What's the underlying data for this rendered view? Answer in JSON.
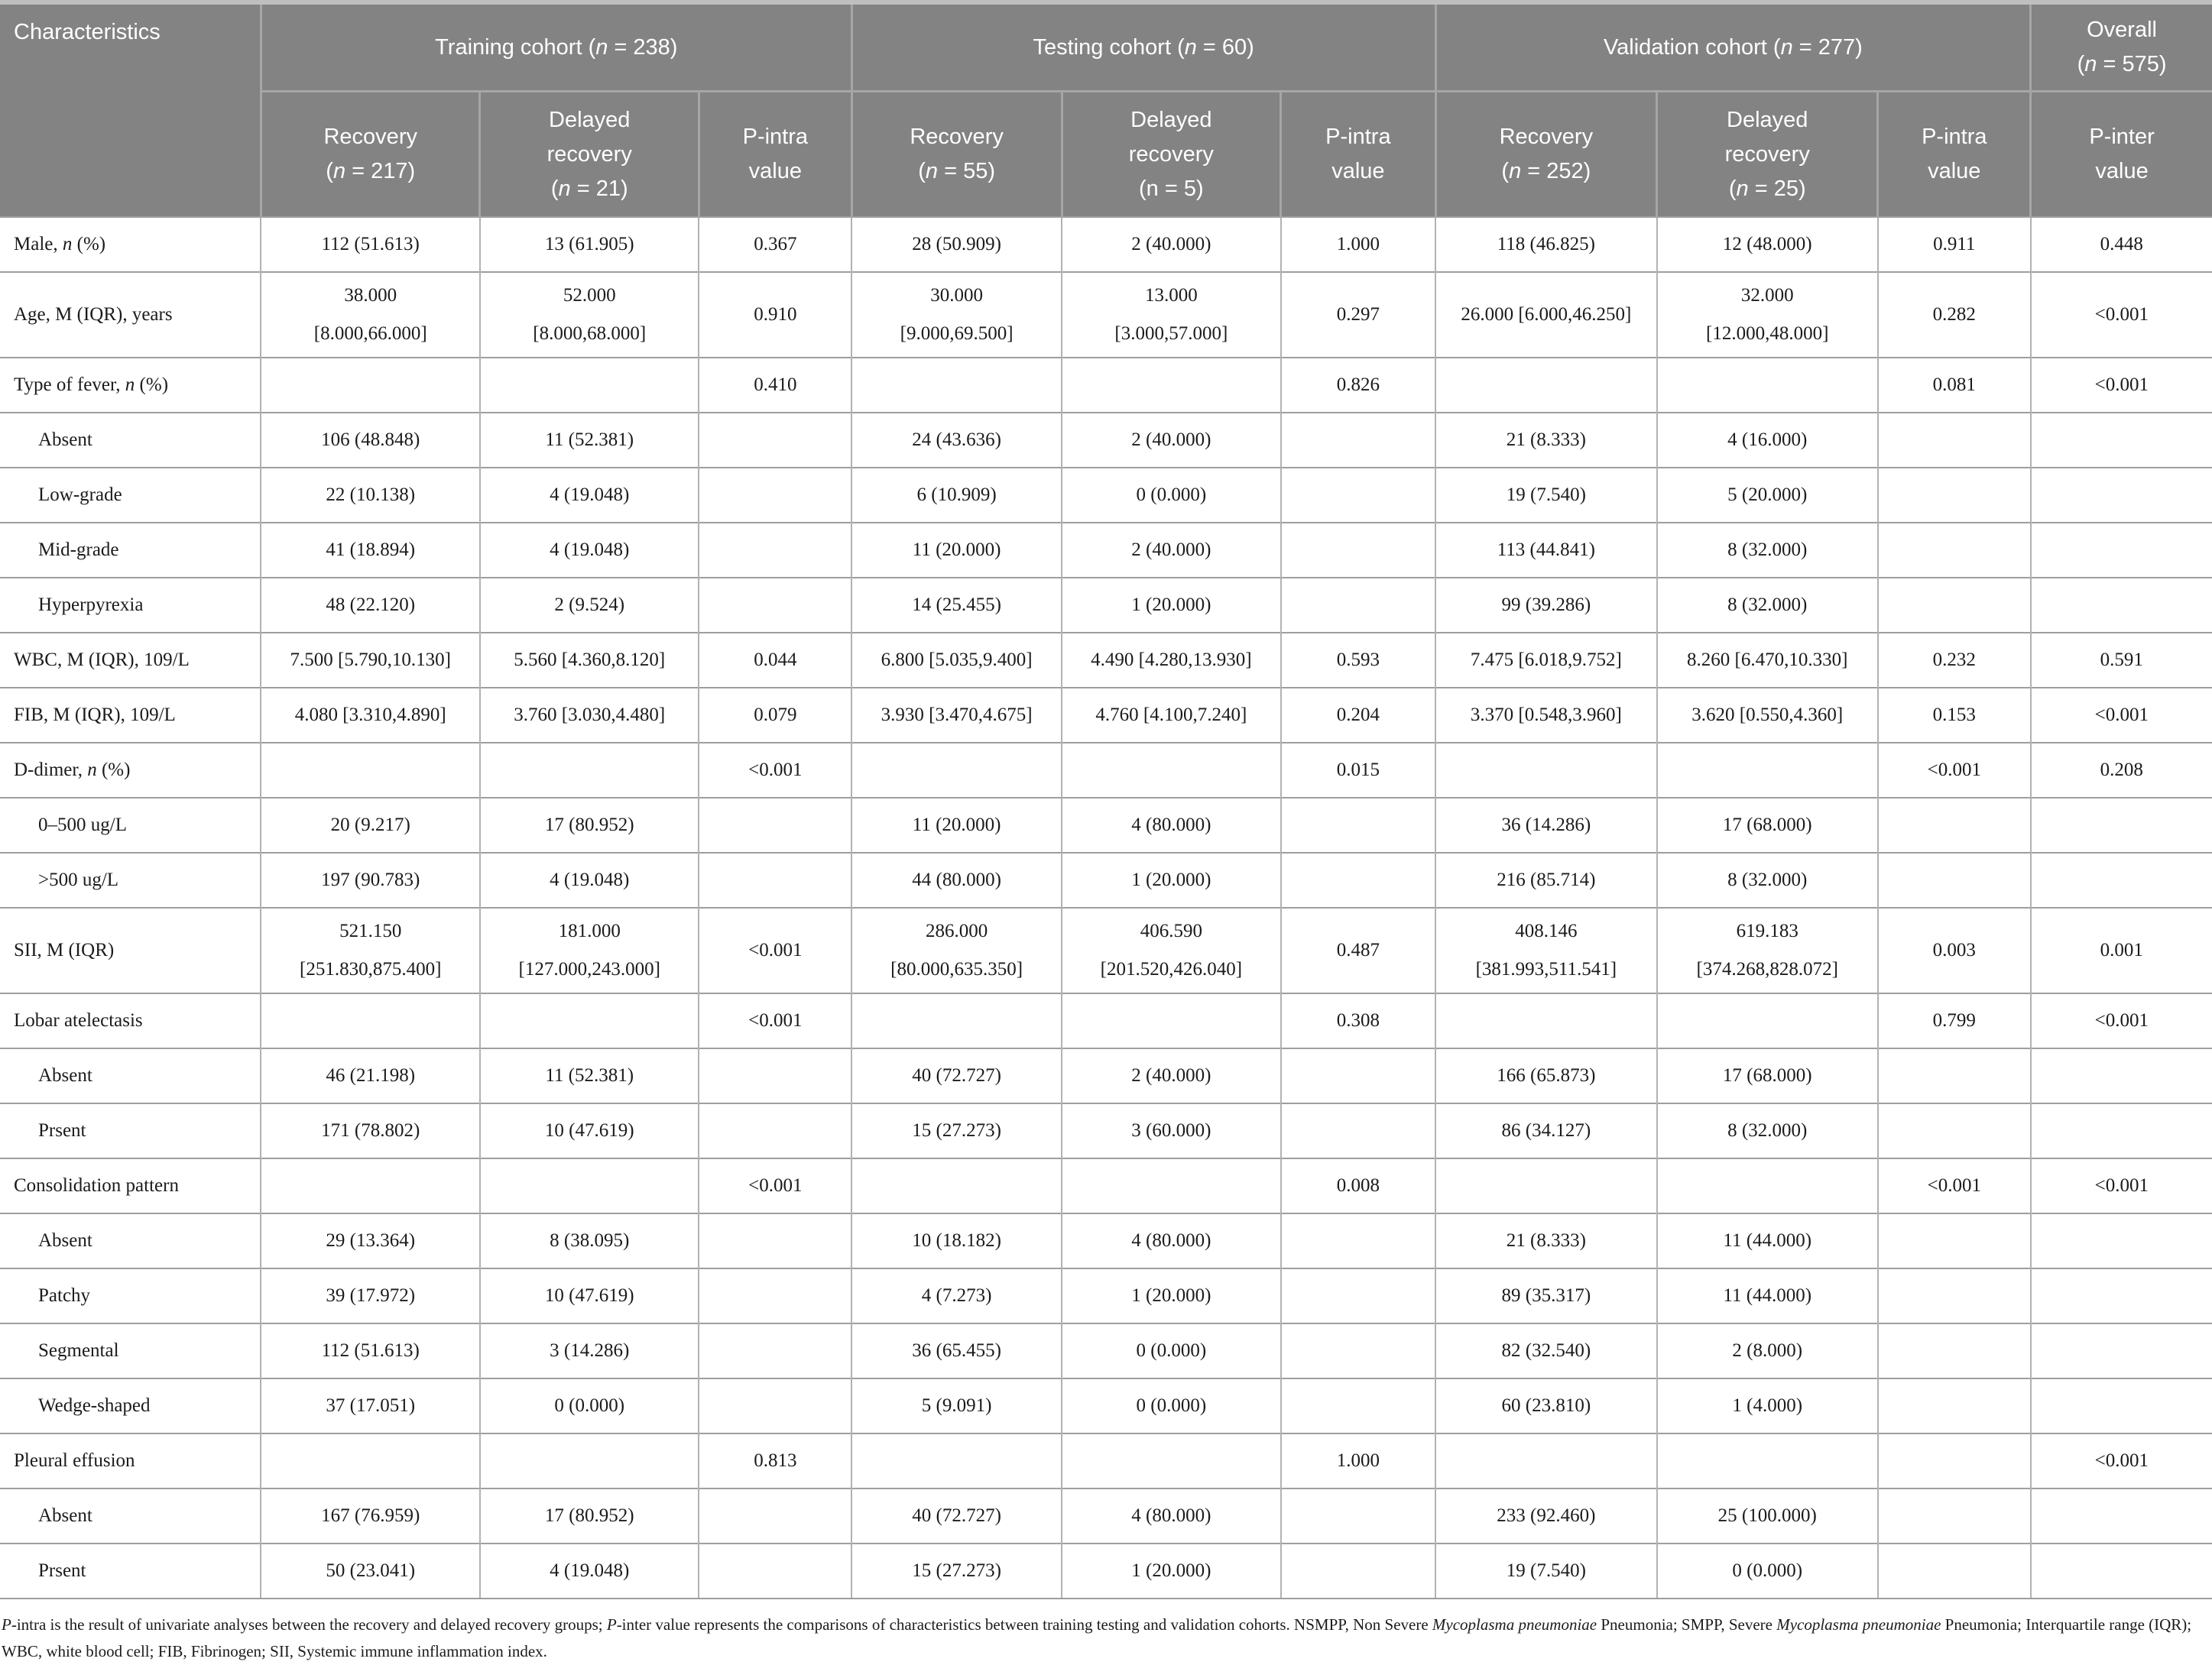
{
  "colors": {
    "header_bg": "#838383",
    "header_text": "#ffffff",
    "header_divider": "#a6a6a6",
    "row_line": "#9e9e9e",
    "col_line": "#b2b2b2",
    "text": "#1b1b1b",
    "top_edge": "#bfbfbf"
  },
  "table": {
    "header": {
      "characteristics": "Characteristics",
      "groups": [
        {
          "label": "Training cohort (*n* = 238)",
          "cols": [
            "Recovery\n(*n* = 217)",
            "Delayed\nrecovery\n(*n* = 21)",
            "P-intra\nvalue"
          ]
        },
        {
          "label": "Testing cohort (*n* = 60)",
          "cols": [
            "Recovery\n(*n* = 55)",
            "Delayed\nrecovery\n(n = 5)",
            "P-intra\nvalue"
          ]
        },
        {
          "label": "Validation cohort (*n* = 277)",
          "cols": [
            "Recovery\n(*n* = 252)",
            "Delayed\nrecovery\n(*n* = 25)",
            "P-intra\nvalue"
          ]
        }
      ],
      "overall": {
        "label": "Overall\n(*n* = 575)",
        "col": "P-inter\nvalue"
      }
    },
    "rows": [
      {
        "label": "Male, *n* (%)",
        "indent": false,
        "cells": [
          "112 (51.613)",
          "13 (61.905)",
          "0.367",
          "28 (50.909)",
          "2 (40.000)",
          "1.000",
          "118 (46.825)",
          "12 (48.000)",
          "0.911",
          "0.448"
        ]
      },
      {
        "label": "Age, M (IQR), years",
        "indent": false,
        "cells": [
          "38.000\n[8.000,66.000]",
          "52.000\n[8.000,68.000]",
          "0.910",
          "30.000\n[9.000,69.500]",
          "13.000\n[3.000,57.000]",
          "0.297",
          "26.000 [6.000,46.250]",
          "32.000\n[12.000,48.000]",
          "0.282",
          "<0.001"
        ]
      },
      {
        "label": "Type of fever, *n* (%)",
        "indent": false,
        "cells": [
          "",
          "",
          "0.410",
          "",
          "",
          "0.826",
          "",
          "",
          "0.081",
          "<0.001"
        ]
      },
      {
        "label": "Absent",
        "indent": true,
        "cells": [
          "106 (48.848)",
          "11 (52.381)",
          "",
          "24 (43.636)",
          "2 (40.000)",
          "",
          "21 (8.333)",
          "4 (16.000)",
          "",
          ""
        ]
      },
      {
        "label": "Low-grade",
        "indent": true,
        "cells": [
          "22 (10.138)",
          "4 (19.048)",
          "",
          "6 (10.909)",
          "0 (0.000)",
          "",
          "19 (7.540)",
          "5 (20.000)",
          "",
          ""
        ]
      },
      {
        "label": "Mid-grade",
        "indent": true,
        "cells": [
          "41 (18.894)",
          "4 (19.048)",
          "",
          "11 (20.000)",
          "2 (40.000)",
          "",
          "113 (44.841)",
          "8 (32.000)",
          "",
          ""
        ]
      },
      {
        "label": "Hyperpyrexia",
        "indent": true,
        "cells": [
          "48 (22.120)",
          "2 (9.524)",
          "",
          "14 (25.455)",
          "1 (20.000)",
          "",
          "99 (39.286)",
          "8 (32.000)",
          "",
          ""
        ]
      },
      {
        "label": "WBC, M (IQR), 109/L",
        "indent": false,
        "cells": [
          "7.500 [5.790,10.130]",
          "5.560 [4.360,8.120]",
          "0.044",
          "6.800 [5.035,9.400]",
          "4.490 [4.280,13.930]",
          "0.593",
          "7.475 [6.018,9.752]",
          "8.260 [6.470,10.330]",
          "0.232",
          "0.591"
        ]
      },
      {
        "label": "FIB, M (IQR), 109/L",
        "indent": false,
        "cells": [
          "4.080 [3.310,4.890]",
          "3.760 [3.030,4.480]",
          "0.079",
          "3.930 [3.470,4.675]",
          "4.760 [4.100,7.240]",
          "0.204",
          "3.370 [0.548,3.960]",
          "3.620 [0.550,4.360]",
          "0.153",
          "<0.001"
        ]
      },
      {
        "label": "D-dimer, *n* (%)",
        "indent": false,
        "cells": [
          "",
          "",
          "<0.001",
          "",
          "",
          "0.015",
          "",
          "",
          "<0.001",
          "0.208"
        ]
      },
      {
        "label": "0–500 ug/L",
        "indent": true,
        "cells": [
          "20 (9.217)",
          "17 (80.952)",
          "",
          "11 (20.000)",
          "4 (80.000)",
          "",
          "36 (14.286)",
          "17 (68.000)",
          "",
          ""
        ]
      },
      {
        "label": ">500 ug/L",
        "indent": true,
        "cells": [
          "197 (90.783)",
          "4 (19.048)",
          "",
          "44 (80.000)",
          "1 (20.000)",
          "",
          "216 (85.714)",
          "8 (32.000)",
          "",
          ""
        ]
      },
      {
        "label": "SII, M (IQR)",
        "indent": false,
        "cells": [
          "521.150\n[251.830,875.400]",
          "181.000\n[127.000,243.000]",
          "<0.001",
          "286.000\n[80.000,635.350]",
          "406.590\n[201.520,426.040]",
          "0.487",
          "408.146\n[381.993,511.541]",
          "619.183\n[374.268,828.072]",
          "0.003",
          "0.001"
        ]
      },
      {
        "label": "Lobar atelectasis",
        "indent": false,
        "cells": [
          "",
          "",
          "<0.001",
          "",
          "",
          "0.308",
          "",
          "",
          "0.799",
          "<0.001"
        ]
      },
      {
        "label": "Absent",
        "indent": true,
        "cells": [
          "46 (21.198)",
          "11 (52.381)",
          "",
          "40 (72.727)",
          "2 (40.000)",
          "",
          "166 (65.873)",
          "17 (68.000)",
          "",
          ""
        ]
      },
      {
        "label": "Prsent",
        "indent": true,
        "cells": [
          "171 (78.802)",
          "10 (47.619)",
          "",
          "15 (27.273)",
          "3 (60.000)",
          "",
          "86 (34.127)",
          "8 (32.000)",
          "",
          ""
        ]
      },
      {
        "label": "Consolidation pattern",
        "indent": false,
        "cells": [
          "",
          "",
          "<0.001",
          "",
          "",
          "0.008",
          "",
          "",
          "<0.001",
          "<0.001"
        ]
      },
      {
        "label": "Absent",
        "indent": true,
        "cells": [
          "29 (13.364)",
          "8 (38.095)",
          "",
          "10 (18.182)",
          "4 (80.000)",
          "",
          "21 (8.333)",
          "11 (44.000)",
          "",
          ""
        ]
      },
      {
        "label": "Patchy",
        "indent": true,
        "cells": [
          "39 (17.972)",
          "10 (47.619)",
          "",
          "4 (7.273)",
          "1 (20.000)",
          "",
          "89 (35.317)",
          "11 (44.000)",
          "",
          ""
        ]
      },
      {
        "label": "Segmental",
        "indent": true,
        "cells": [
          "112 (51.613)",
          "3 (14.286)",
          "",
          "36 (65.455)",
          "0 (0.000)",
          "",
          "82 (32.540)",
          "2 (8.000)",
          "",
          ""
        ]
      },
      {
        "label": "Wedge-shaped",
        "indent": true,
        "cells": [
          "37 (17.051)",
          "0 (0.000)",
          "",
          "5 (9.091)",
          "0 (0.000)",
          "",
          "60 (23.810)",
          "1 (4.000)",
          "",
          ""
        ]
      },
      {
        "label": "Pleural effusion",
        "indent": false,
        "cells": [
          "",
          "",
          "0.813",
          "",
          "",
          "1.000",
          "",
          "",
          "",
          "<0.001"
        ]
      },
      {
        "label": "Absent",
        "indent": true,
        "cells": [
          "167 (76.959)",
          "17 (80.952)",
          "",
          "40 (72.727)",
          "4 (80.000)",
          "",
          "233 (92.460)",
          "25 (100.000)",
          "",
          ""
        ]
      },
      {
        "label": "Prsent",
        "indent": true,
        "cells": [
          "50 (23.041)",
          "4 (19.048)",
          "",
          "15 (27.273)",
          "1 (20.000)",
          "",
          "19 (7.540)",
          "0 (0.000)",
          "",
          ""
        ]
      }
    ]
  },
  "footnote": "*P*-intra is the result of univariate analyses between the recovery and delayed recovery groups; *P*-inter value represents the comparisons of characteristics between training testing and validation cohorts. NSMPP, Non Severe *Mycoplasma pneumoniae* Pneumonia; SMPP, Severe *Mycoplasma pneumoniae* Pneumonia; Interquartile range (IQR); WBC, white blood cell; FIB, Fibrinogen; SII, Systemic immune inflammation index."
}
